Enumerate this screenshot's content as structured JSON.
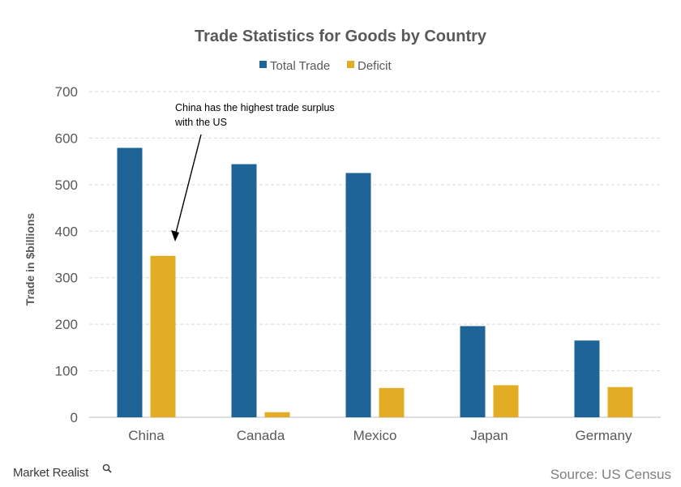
{
  "chart_data": {
    "type": "bar",
    "title": "Trade Statistics  for Goods by Country",
    "categories": [
      "China",
      "Canada",
      "Mexico",
      "Japan",
      "Germany"
    ],
    "series": [
      {
        "name": "Total Trade",
        "color": "#1f6496",
        "values": [
          579,
          544,
          525,
          196,
          165
        ]
      },
      {
        "name": "Deficit",
        "color": "#e2ad24",
        "values": [
          347,
          11,
          63,
          69,
          65
        ]
      }
    ],
    "ylabel": "Trade in $billions",
    "xlabel": "",
    "ylim": [
      0,
      700
    ],
    "yticks": [
      0,
      100,
      200,
      300,
      400,
      500,
      600,
      700
    ],
    "grid": true,
    "legend_position": "top-center",
    "annotations": [
      {
        "lines": [
          "China has the highest trade surplus",
          "with the US"
        ],
        "points_to": {
          "category": "China",
          "series": "Deficit"
        }
      }
    ]
  },
  "footer": {
    "brand": "Market Realist",
    "source": "Source: US Census"
  },
  "icons": {
    "brand_icon": "magnifier-icon"
  }
}
